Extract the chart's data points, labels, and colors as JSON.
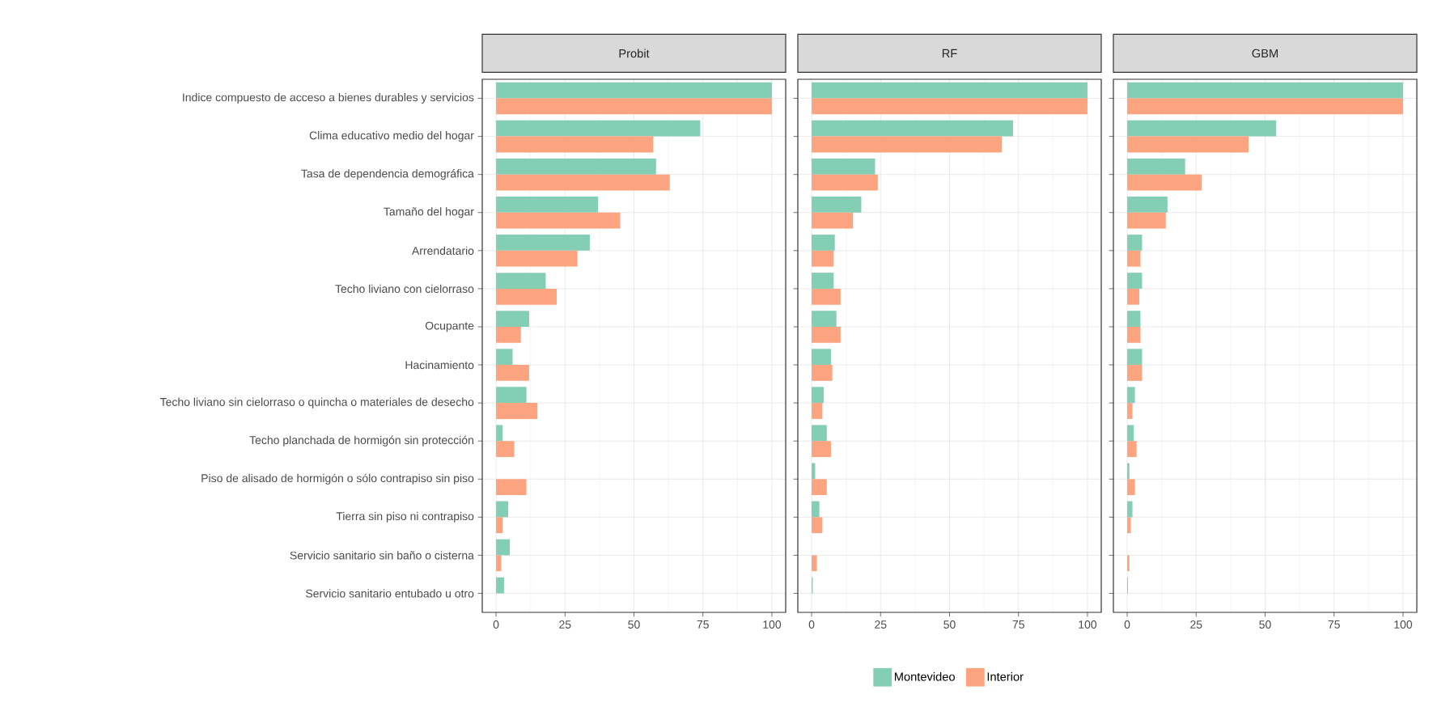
{
  "chart_data": [
    {
      "type": "bar",
      "orientation": "horizontal",
      "title": "Probit",
      "categories": [
        "Indice compuesto de acceso a bienes durables y servicios",
        "Clima educativo medio del hogar",
        "Tasa de dependencia demográfica",
        "Tamaño del hogar",
        "Arrendatario",
        "Techo liviano con cielorraso",
        "Ocupante",
        "Hacinamiento",
        "Techo liviano sin cielorraso o quincha o materiales de desecho",
        "Techo planchada de hormigón sin protección",
        "Piso de alisado de hormigón o sólo contrapiso sin piso",
        "Tierra sin piso ni contrapiso",
        "Servicio sanitario sin baño o cisterna",
        "Servicio sanitario entubado u otro"
      ],
      "series": [
        {
          "color": "#84ceb5",
          "values": [
            100,
            74,
            58,
            37,
            34,
            18,
            12,
            6,
            11,
            2.4,
            null,
            4.4,
            5,
            2.9
          ]
        },
        {
          "color": "#fca47f",
          "values": [
            100,
            57,
            63,
            45,
            29.5,
            22,
            9,
            12,
            15,
            6.6,
            11,
            2.4,
            1.9,
            null
          ]
        }
      ],
      "xlim": [
        -5,
        105
      ],
      "xticks": [
        0,
        25,
        50,
        75,
        100
      ],
      "grid": true
    },
    {
      "type": "bar",
      "orientation": "horizontal",
      "title": "RF",
      "categories": [
        null,
        null,
        null,
        null,
        null,
        null,
        null,
        null,
        null,
        null,
        null,
        null,
        null,
        null
      ],
      "series": [
        {
          "name": "Montevideo",
          "color": "#84ceb5",
          "values": [
            100,
            73,
            23,
            18,
            8.4,
            8,
            9,
            7,
            4.4,
            5.5,
            1.3,
            2.8,
            null,
            0.4
          ]
        },
        {
          "name": "Interior",
          "color": "#fca47f",
          "values": [
            100,
            69,
            24,
            15,
            8,
            10.5,
            10.5,
            7.5,
            3.9,
            7,
            5.5,
            3.9,
            1.9,
            null
          ]
        }
      ],
      "xlim": [
        -5,
        105
      ],
      "xticks": [
        0,
        25,
        50,
        75,
        100
      ],
      "grid": true,
      "tick_labels": "x",
      "legend": "bottom"
    },
    {
      "type": "bar",
      "orientation": "horizontal",
      "title": "GBM",
      "categories": [
        null,
        null,
        null,
        null,
        null,
        null,
        null,
        null,
        null,
        null,
        null,
        null,
        null,
        null
      ],
      "series": [
        {
          "color": "#84ceb5",
          "values": [
            100,
            54,
            21,
            14.6,
            5.4,
            5.4,
            4.8,
            5.4,
            2.8,
            2.4,
            0.8,
            1.9,
            null,
            0.3
          ]
        },
        {
          "color": "#fca47f",
          "values": [
            100,
            44,
            27,
            14,
            4.8,
            4.4,
            4.8,
            5.4,
            1.9,
            3.4,
            2.8,
            1.3,
            0.8,
            null
          ]
        }
      ],
      "xlim": [
        -5,
        105
      ],
      "xticks": [
        0,
        25,
        50,
        75,
        100
      ],
      "grid": true,
      "tick_labels": "x"
    }
  ]
}
